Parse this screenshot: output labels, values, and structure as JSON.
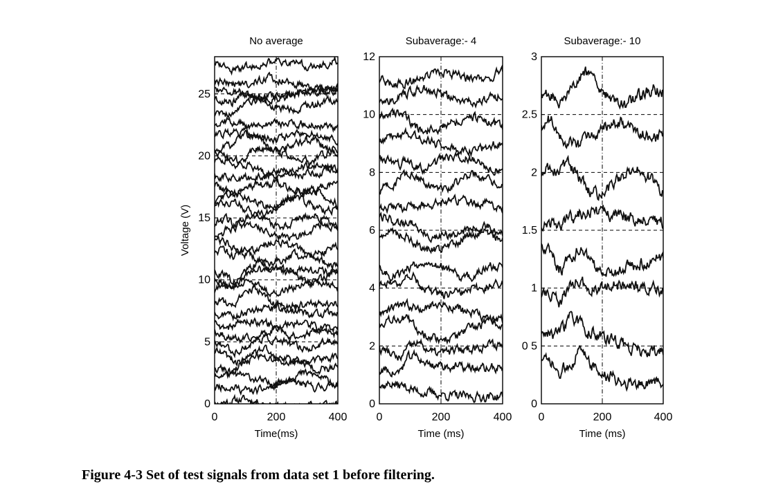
{
  "caption": "Figure 4-3 Set of test signals from data set 1 before filtering.",
  "chart_data": [
    {
      "type": "line",
      "title": "No average",
      "xlabel": "Time(ms)",
      "ylabel": "Voltage (V)",
      "xlim": [
        0,
        400
      ],
      "ylim": [
        0,
        28
      ],
      "xticks": [
        0,
        200,
        400
      ],
      "yticks": [
        0,
        5,
        10,
        15,
        20,
        25
      ],
      "ytick_labels": [
        "0",
        "5",
        "10",
        "15",
        "20",
        "25"
      ],
      "grid": true,
      "trace_offsets": [
        0.2,
        1.1,
        2.0,
        2.9,
        3.8,
        4.7,
        5.6,
        6.5,
        7.4,
        8.3,
        9.2,
        10.1,
        11.0,
        11.9,
        12.8,
        13.7,
        14.6,
        15.5,
        16.4,
        17.3,
        18.2,
        19.1,
        20.0,
        20.9,
        21.8,
        22.7,
        23.6,
        24.5,
        25.4,
        26.3,
        27.2
      ],
      "trace_color": "#111111"
    },
    {
      "type": "line",
      "title": "Subaverage:- 4",
      "xlabel": "Time (ms)",
      "ylabel": "",
      "xlim": [
        0,
        400
      ],
      "ylim": [
        0,
        12
      ],
      "xticks": [
        0,
        200,
        400
      ],
      "yticks": [
        0,
        2,
        4,
        6,
        8,
        10,
        12
      ],
      "ytick_labels": [
        "0",
        "2",
        "4",
        "6",
        "8",
        "10",
        "12"
      ],
      "grid": true,
      "trace_offsets": [
        0.5,
        1.2,
        1.9,
        2.6,
        3.3,
        4.0,
        4.8,
        5.5,
        6.2,
        6.9,
        7.6,
        8.3,
        9.0,
        9.8,
        10.5,
        11.2
      ],
      "trace_color": "#111111"
    },
    {
      "type": "line",
      "title": "Subaverage:- 10",
      "xlabel": "Time (ms)",
      "ylabel": "",
      "xlim": [
        0,
        400
      ],
      "ylim": [
        0,
        3
      ],
      "xticks": [
        0,
        200,
        400
      ],
      "yticks": [
        0,
        0.5,
        1,
        1.5,
        2,
        2.5,
        3
      ],
      "ytick_labels": [
        "0",
        "0 5",
        "1",
        "1.5",
        "2",
        "2.5",
        "3"
      ],
      "grid": true,
      "trace_offsets": [
        0.3,
        0.6,
        0.95,
        1.3,
        1.6,
        1.95,
        2.3,
        2.75
      ],
      "trace_color": "#111111"
    }
  ]
}
